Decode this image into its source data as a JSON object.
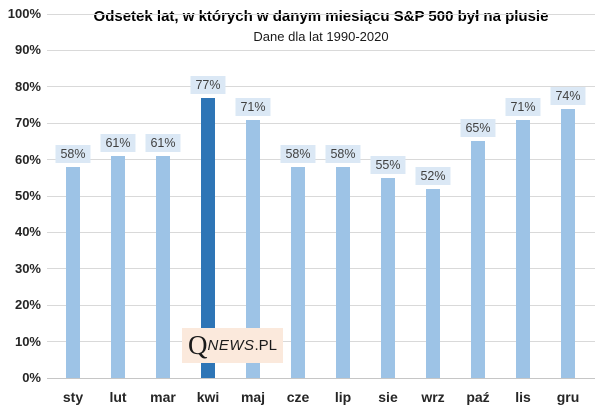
{
  "header": {
    "title": "Odsetek lat, w których w danym miesiącu S&P 500 był na plusie",
    "subtitle": "Dane dla lat 1990-2020"
  },
  "watermark": {
    "q": "Q",
    "news": "NEWS",
    "suffix": ".PL"
  },
  "chart_data": {
    "type": "bar",
    "title": "Odsetek lat, w których w danym miesiącu S&P 500 był na plusie",
    "subtitle": "Dane dla lat 1990-2020",
    "categories": [
      "sty",
      "lut",
      "mar",
      "kwi",
      "maj",
      "cze",
      "lip",
      "sie",
      "wrz",
      "paź",
      "lis",
      "gru"
    ],
    "values": [
      58,
      61,
      61,
      77,
      71,
      58,
      58,
      55,
      52,
      65,
      71,
      74
    ],
    "data_labels": [
      "58%",
      "61%",
      "61%",
      "77%",
      "71%",
      "58%",
      "58%",
      "55%",
      "52%",
      "65%",
      "71%",
      "74%"
    ],
    "highlight_index": 3,
    "highlight_category": "kwi",
    "xlabel": "",
    "ylabel": "",
    "ylim": [
      0,
      100
    ],
    "yticks": [
      "0%",
      "10%",
      "20%",
      "30%",
      "40%",
      "50%",
      "60%",
      "70%",
      "80%",
      "90%",
      "100%"
    ],
    "ytick_values": [
      0,
      10,
      20,
      30,
      40,
      50,
      60,
      70,
      80,
      90,
      100
    ],
    "grid": true,
    "legend": "none",
    "colors": {
      "bar": "#9dc3e6",
      "highlight_bar": "#2e75b6",
      "label_bg": "#dbe8f5",
      "label_text": "#404040",
      "gridline": "#d9d9d9",
      "axis_text": "#262626",
      "watermark_bg": "#fbe9dc",
      "watermark_text": "#1a1a1a"
    }
  }
}
